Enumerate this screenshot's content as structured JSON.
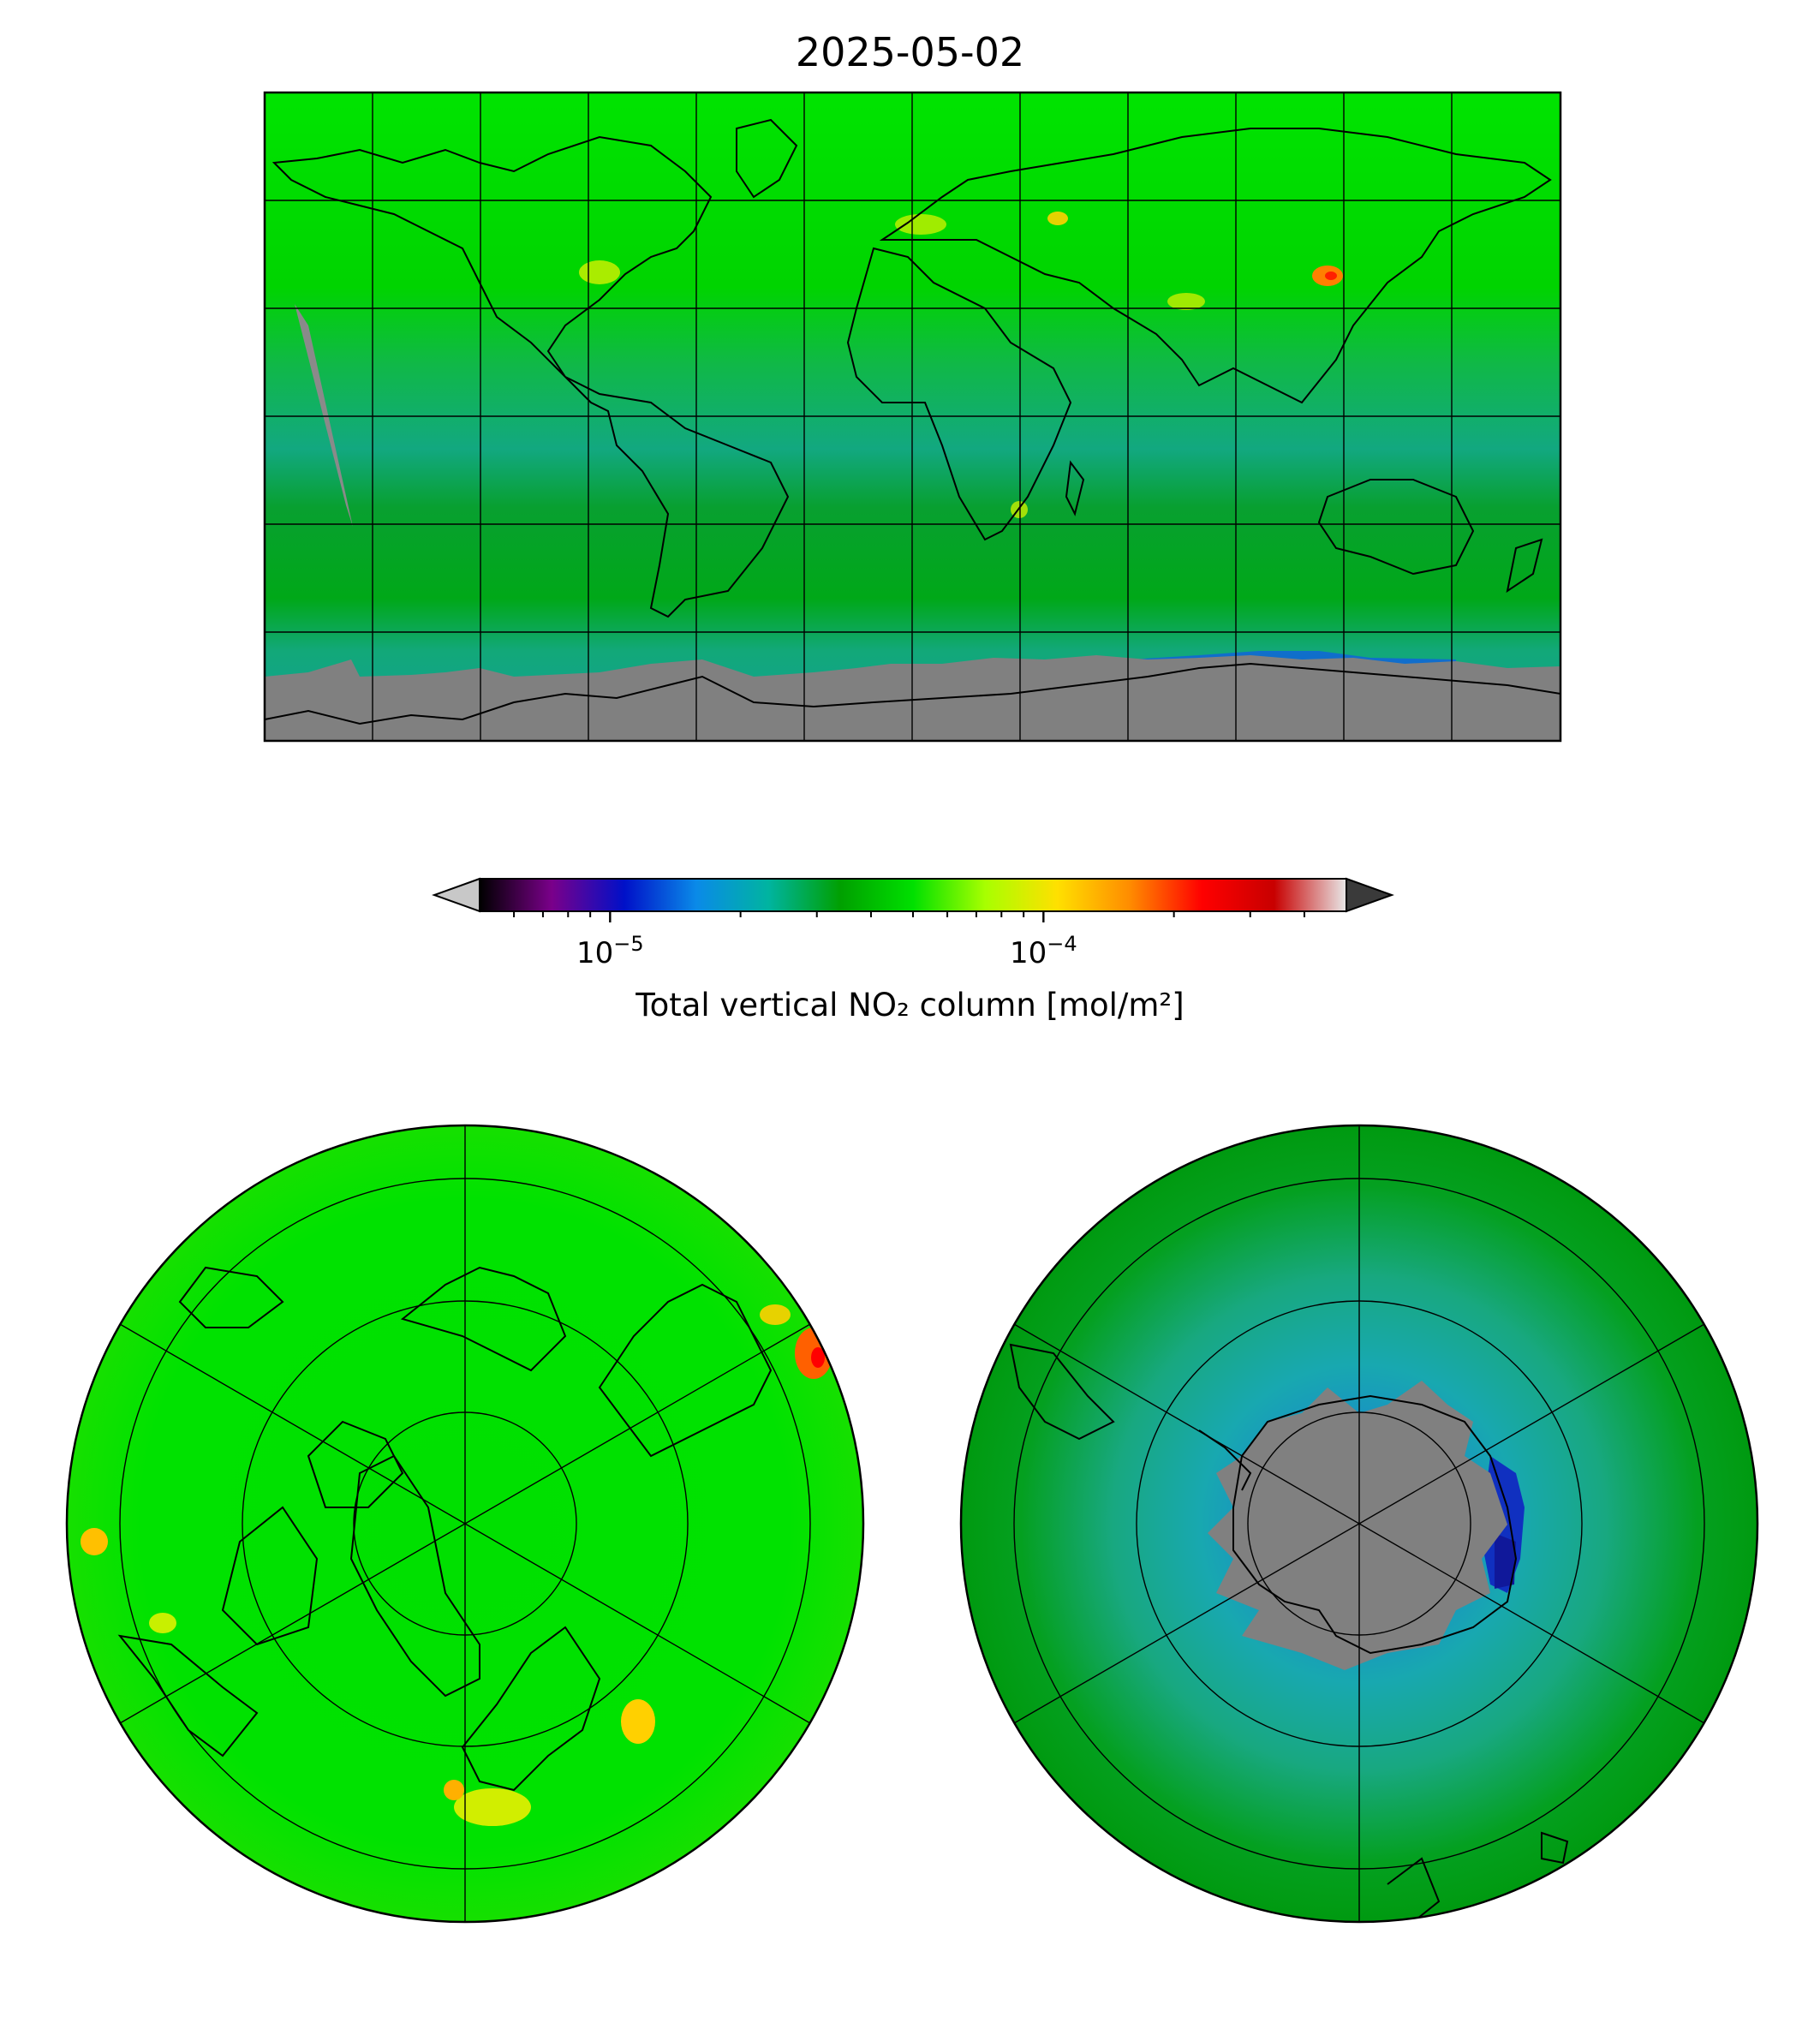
{
  "title": "2025-05-02",
  "colorbar": {
    "label": "Total vertical NO₂ column [mol/m²]",
    "scale": "log",
    "range": [
      5e-06,
      0.0005
    ],
    "extend": "both",
    "major_ticks": [
      {
        "value": 1e-05,
        "base": "10",
        "exp": "−5"
      },
      {
        "value": 0.0001,
        "base": "10",
        "exp": "−4"
      }
    ],
    "minor_ticks": [
      6e-06,
      7e-06,
      8e-06,
      9e-06,
      2e-05,
      3e-05,
      4e-05,
      5e-05,
      6e-05,
      7e-05,
      8e-05,
      9e-05,
      0.0002,
      0.0003,
      0.0004
    ],
    "stops": [
      "#000000",
      "#7a008a",
      "#0010c8",
      "#0a8ae8",
      "#00b4a0",
      "#00a000",
      "#00e000",
      "#a8ff00",
      "#ffe000",
      "#ff8c00",
      "#ff0000",
      "#c80000",
      "#e8e8e8"
    ],
    "under_color": "#c8c8c8",
    "over_color": "#3a3a3a"
  },
  "maps": [
    {
      "name": "global-equirectangular-map",
      "projection": "PlateCarree",
      "extent": [
        -180,
        180,
        -90,
        90
      ],
      "no_data_color": "#808080",
      "background": "#00d800"
    },
    {
      "name": "north-polar-map",
      "projection": "NorthPolarStereo",
      "background": "#00e200"
    },
    {
      "name": "south-polar-map",
      "projection": "SouthPolarStereo",
      "background": "#00a818",
      "no_data_color": "#808080"
    }
  ]
}
